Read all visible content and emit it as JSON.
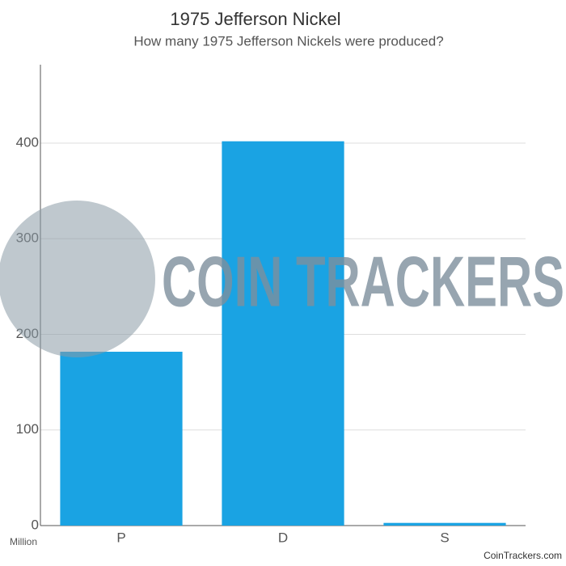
{
  "chart_data": {
    "type": "bar",
    "title": "1975 Jefferson Nickel",
    "subtitle": "How many 1975 Jefferson Nickels were produced?",
    "categories": [
      "P",
      "D",
      "S"
    ],
    "values": [
      181.8,
      401.9,
      2.8
    ],
    "color": "#1aa3e3",
    "ylim": [
      0,
      482
    ],
    "yticks": [
      0,
      100,
      200,
      300,
      400
    ],
    "grid": true,
    "unit_label": "Million",
    "watermark": "COIN TRACKERS",
    "credit": "CoinTrackers.com"
  }
}
